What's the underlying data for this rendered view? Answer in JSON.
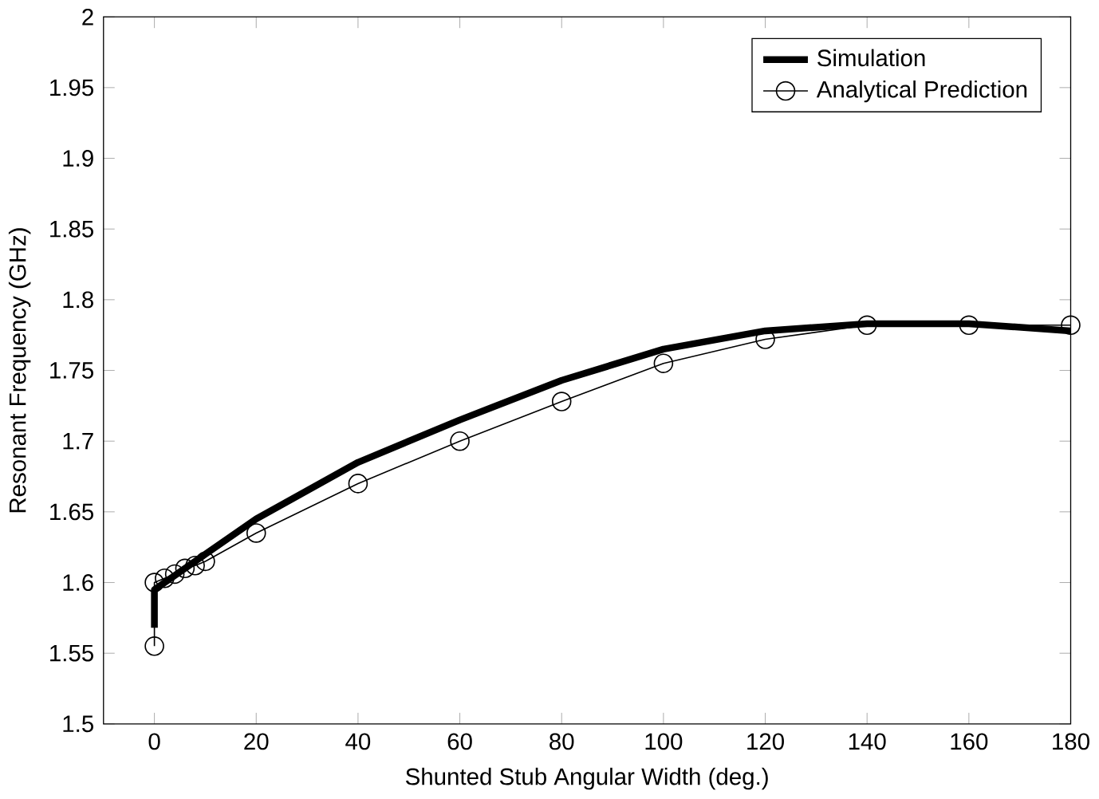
{
  "chart_data": {
    "type": "line",
    "xlabel": "Shunted Stub Angular Width (deg.)",
    "ylabel": "Resonant Frequency (GHz)",
    "xlim": [
      -10,
      180
    ],
    "xticks": [
      0,
      20,
      40,
      60,
      80,
      100,
      120,
      140,
      160,
      180
    ],
    "ylim": [
      1.5,
      2
    ],
    "yticks": [
      1.5,
      1.55,
      1.6,
      1.65,
      1.7,
      1.75,
      1.8,
      1.85,
      1.9,
      1.95,
      2
    ],
    "legend": "top right",
    "grid": false,
    "series": [
      {
        "name": "Simulation",
        "color": "#000000",
        "marker": "none",
        "x": [
          0,
          0,
          10,
          20,
          40,
          60,
          80,
          100,
          120,
          140,
          160,
          180
        ],
        "values": [
          1.568,
          1.595,
          1.62,
          1.645,
          1.685,
          1.715,
          1.743,
          1.765,
          1.778,
          1.783,
          1.783,
          1.778
        ]
      },
      {
        "name": "Analytical Prediction",
        "color": "#000000",
        "marker": "circle",
        "x": [
          0,
          0,
          2,
          4,
          6,
          8,
          10,
          20,
          40,
          60,
          80,
          100,
          120,
          140,
          160,
          180
        ],
        "values": [
          1.555,
          1.6,
          1.603,
          1.606,
          1.61,
          1.612,
          1.615,
          1.635,
          1.67,
          1.7,
          1.728,
          1.755,
          1.772,
          1.782,
          1.782,
          1.782
        ]
      }
    ]
  }
}
